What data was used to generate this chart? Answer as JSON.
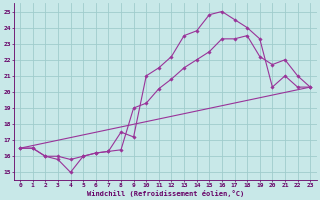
{
  "xlabel": "Windchill (Refroidissement éolien,°C)",
  "xlim": [
    -0.5,
    23.5
  ],
  "ylim": [
    14.5,
    25.5
  ],
  "xticks": [
    0,
    1,
    2,
    3,
    4,
    5,
    6,
    7,
    8,
    9,
    10,
    11,
    12,
    13,
    14,
    15,
    16,
    17,
    18,
    19,
    20,
    21,
    22,
    23
  ],
  "yticks": [
    15,
    16,
    17,
    18,
    19,
    20,
    21,
    22,
    23,
    24,
    25
  ],
  "bg_color": "#c8e8e8",
  "grid_color": "#a0cccc",
  "line_color": "#993399",
  "line1_x": [
    0,
    1,
    2,
    3,
    4,
    5,
    6,
    7,
    8,
    9,
    10,
    11,
    12,
    13,
    14,
    15,
    16,
    17,
    18,
    19,
    20,
    21,
    22,
    23
  ],
  "line1_y": [
    16.5,
    16.5,
    16.0,
    15.8,
    15.0,
    16.0,
    16.2,
    16.3,
    17.5,
    17.2,
    21.0,
    21.5,
    22.2,
    23.5,
    23.8,
    24.8,
    25.0,
    24.5,
    24.0,
    23.3,
    20.3,
    21.0,
    20.3,
    20.3
  ],
  "line2_x": [
    0,
    1,
    2,
    3,
    4,
    5,
    6,
    7,
    8,
    9,
    10,
    11,
    12,
    13,
    14,
    15,
    16,
    17,
    18,
    19,
    20,
    21,
    22,
    23
  ],
  "line2_y": [
    16.5,
    16.5,
    16.0,
    16.0,
    15.8,
    16.0,
    16.2,
    16.3,
    16.4,
    19.0,
    19.3,
    20.2,
    20.8,
    21.5,
    22.0,
    22.5,
    23.3,
    23.3,
    23.5,
    22.2,
    21.7,
    22.0,
    21.0,
    20.3
  ],
  "line3_x": [
    0,
    23
  ],
  "line3_y": [
    16.5,
    20.3
  ]
}
